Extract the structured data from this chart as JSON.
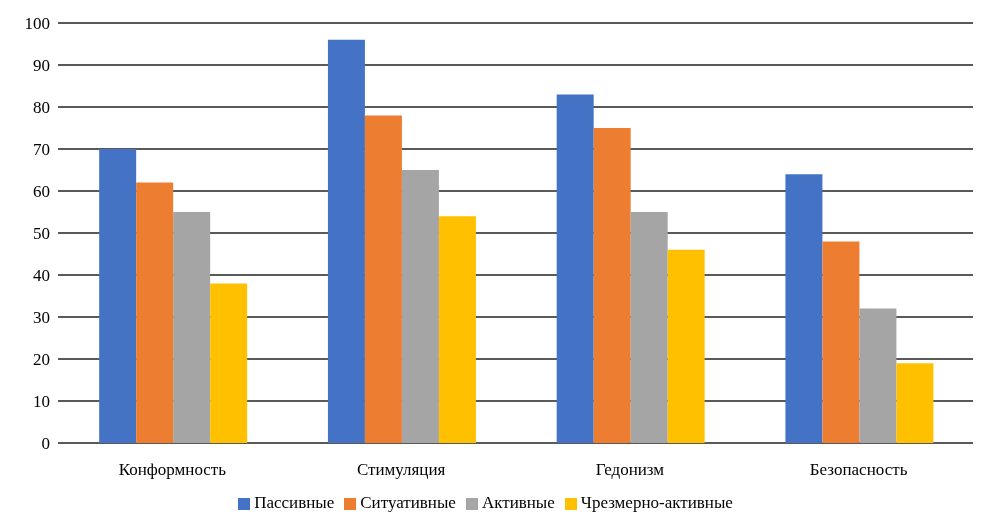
{
  "chart_data": {
    "type": "bar",
    "categories": [
      "Конформность",
      "Стимуляция",
      "Гедонизм",
      "Безопасность"
    ],
    "series": [
      {
        "name": "Пассивные",
        "color": "#4472c4",
        "values": [
          70,
          96,
          83,
          64
        ]
      },
      {
        "name": "Ситуативные",
        "color": "#ed7d31",
        "values": [
          62,
          78,
          75,
          48
        ]
      },
      {
        "name": "Активные",
        "color": "#a5a5a5",
        "values": [
          55,
          65,
          55,
          32
        ]
      },
      {
        "name": "Чрезмерно-активные",
        "color": "#ffc000",
        "values": [
          38,
          54,
          46,
          19
        ]
      }
    ],
    "ylim": [
      0,
      100
    ],
    "yticks": [
      0,
      10,
      20,
      30,
      40,
      50,
      60,
      70,
      80,
      90,
      100
    ],
    "grid": "y",
    "legend": "bottom"
  }
}
